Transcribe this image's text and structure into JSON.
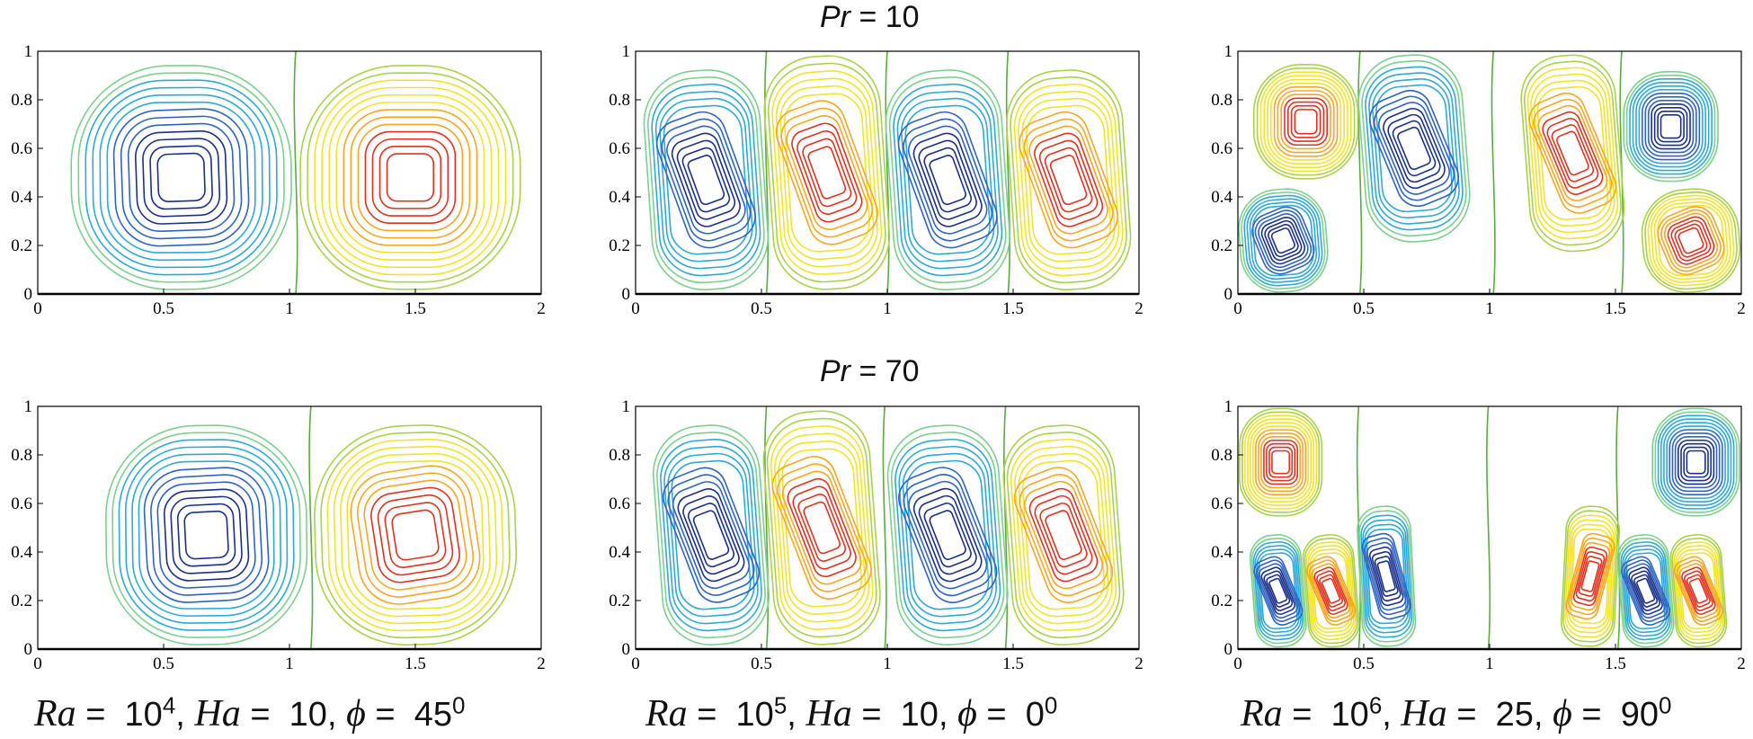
{
  "rows": [
    {
      "var": "Pr",
      "eq": "=",
      "value": "10"
    },
    {
      "var": "Pr",
      "eq": "=",
      "value": "70"
    }
  ],
  "columns": [
    {
      "ra": "Ra",
      "eq": "=",
      "ra_base": "10",
      "ra_exp": "4",
      "sep1": ",",
      "ha": "Ha",
      "ha_val": "10",
      "sep2": ",",
      "phi": "ϕ",
      "phi_val": "45",
      "phi_sup": "0"
    },
    {
      "ra": "Ra",
      "eq": "=",
      "ra_base": "10",
      "ra_exp": "5",
      "sep1": ",",
      "ha": "Ha",
      "ha_val": "10",
      "sep2": ",",
      "phi": "ϕ",
      "phi_val": "0",
      "phi_sup": "0"
    },
    {
      "ra": "Ra",
      "eq": "=",
      "ra_base": "10",
      "ra_exp": "6",
      "sep1": ",",
      "ha": "Ha",
      "ha_val": "25",
      "sep2": ",",
      "phi": "ϕ",
      "phi_val": "90",
      "phi_sup": "0"
    }
  ],
  "colors": {
    "zero_contour": "#5aaa3c",
    "colormap": [
      "#1a2f8a",
      "#2f63c2",
      "#2ea9d6",
      "#7dcf8f",
      "#a9d24a",
      "#f2e32a",
      "#f6a623",
      "#e0321f"
    ],
    "axis": "#000000"
  },
  "chart_data": [
    {
      "type": "contour",
      "title": "Pr = 10 | Ra = 10^4, Ha = 10, ϕ = 45°",
      "xticks": [
        "0",
        "0.5",
        "1",
        "1.5",
        "2"
      ],
      "yticks": [
        "0",
        "0.2",
        "0.4",
        "0.6",
        "0.8",
        "1"
      ],
      "xlim": [
        0,
        2
      ],
      "ylim": [
        0,
        1
      ],
      "cells": [
        {
          "cx": 0.57,
          "cy": 0.48,
          "sign": -1,
          "tilt": 8
        },
        {
          "cx": 1.48,
          "cy": 0.48,
          "sign": 1,
          "tilt": 0
        }
      ]
    },
    {
      "type": "contour",
      "title": "Pr = 10 | Ra = 10^5, Ha = 10, ϕ = 0°",
      "xticks": [
        "0",
        "0.5",
        "1",
        "1.5",
        "2"
      ],
      "yticks": [
        "0",
        "0.2",
        "0.4",
        "0.6",
        "0.8",
        "1"
      ],
      "xlim": [
        0,
        2
      ],
      "ylim": [
        0,
        1
      ],
      "cells": [
        {
          "cx": 0.28,
          "cy": 0.47,
          "sign": -1,
          "tilt": 80
        },
        {
          "cx": 0.76,
          "cy": 0.5,
          "sign": 1,
          "tilt": 80
        },
        {
          "cx": 1.24,
          "cy": 0.47,
          "sign": -1,
          "tilt": 80
        },
        {
          "cx": 1.72,
          "cy": 0.47,
          "sign": 1,
          "tilt": 80
        }
      ]
    },
    {
      "type": "contour",
      "title": "Pr = 10 | Ra = 10^6, Ha = 25, ϕ = 90°",
      "xticks": [
        "0",
        "0.5",
        "1",
        "1.5",
        "2"
      ],
      "yticks": [
        "0",
        "0.2",
        "0.4",
        "0.6",
        "0.8",
        "1"
      ],
      "xlim": [
        0,
        2
      ],
      "ylim": [
        0,
        1
      ],
      "cells": [
        {
          "cx": 0.27,
          "cy": 0.71,
          "sign": 1,
          "tilt": 0
        },
        {
          "cx": 0.18,
          "cy": 0.22,
          "sign": -1,
          "tilt": 90
        },
        {
          "cx": 0.7,
          "cy": 0.6,
          "sign": -1,
          "tilt": 90
        },
        {
          "cx": 1.33,
          "cy": 0.58,
          "sign": 1,
          "tilt": 90
        },
        {
          "cx": 1.72,
          "cy": 0.69,
          "sign": -1,
          "tilt": 0
        },
        {
          "cx": 1.8,
          "cy": 0.22,
          "sign": 1,
          "tilt": 90
        }
      ]
    },
    {
      "type": "contour",
      "title": "Pr = 70 | Ra = 10^4, Ha = 10, ϕ = 45°",
      "xticks": [
        "0",
        "0.5",
        "1",
        "1.5",
        "2"
      ],
      "yticks": [
        "0",
        "0.2",
        "0.4",
        "0.6",
        "0.8",
        "1"
      ],
      "xlim": [
        0,
        2
      ],
      "ylim": [
        0,
        1
      ],
      "cells": [
        {
          "cx": 0.67,
          "cy": 0.47,
          "sign": -1,
          "tilt": 12
        },
        {
          "cx": 1.5,
          "cy": 0.47,
          "sign": 1,
          "tilt": 35
        }
      ]
    },
    {
      "type": "contour",
      "title": "Pr = 70 | Ra = 10^5, Ha = 10, ϕ = 0°",
      "xticks": [
        "0",
        "0.5",
        "1",
        "1.5",
        "2"
      ],
      "yticks": [
        "0",
        "0.2",
        "0.4",
        "0.6",
        "0.8",
        "1"
      ],
      "xlim": [
        0,
        2
      ],
      "ylim": [
        0,
        1
      ],
      "cells": [
        {
          "cx": 0.3,
          "cy": 0.47,
          "sign": -1,
          "tilt": 85
        },
        {
          "cx": 0.74,
          "cy": 0.5,
          "sign": 1,
          "tilt": 85
        },
        {
          "cx": 1.24,
          "cy": 0.47,
          "sign": -1,
          "tilt": 85
        },
        {
          "cx": 1.7,
          "cy": 0.47,
          "sign": 1,
          "tilt": 85
        }
      ]
    },
    {
      "type": "contour",
      "title": "Pr = 70 | Ra = 10^6, Ha = 25, ϕ = 90°",
      "xticks": [
        "0",
        "0.5",
        "1",
        "1.5",
        "2"
      ],
      "yticks": [
        "0",
        "0.2",
        "0.4",
        "0.6",
        "0.8",
        "1"
      ],
      "xlim": [
        0,
        2
      ],
      "ylim": [
        0,
        1
      ],
      "cells": [
        {
          "cx": 0.17,
          "cy": 0.77,
          "sign": 1,
          "tilt": 0
        },
        {
          "cx": 0.16,
          "cy": 0.24,
          "sign": -1,
          "tilt": 90
        },
        {
          "cx": 0.37,
          "cy": 0.24,
          "sign": 1,
          "tilt": 90
        },
        {
          "cx": 0.59,
          "cy": 0.3,
          "sign": -1,
          "tilt": 60
        },
        {
          "cx": 1.4,
          "cy": 0.3,
          "sign": 1,
          "tilt": -60
        },
        {
          "cx": 1.62,
          "cy": 0.24,
          "sign": -1,
          "tilt": 90
        },
        {
          "cx": 1.83,
          "cy": 0.24,
          "sign": 1,
          "tilt": 90
        },
        {
          "cx": 1.82,
          "cy": 0.77,
          "sign": -1,
          "tilt": 0
        }
      ]
    }
  ]
}
